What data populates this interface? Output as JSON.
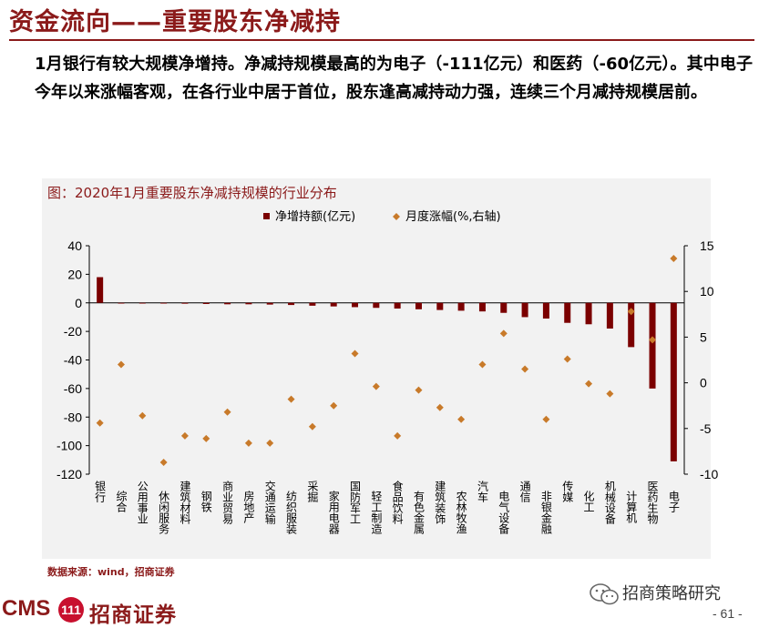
{
  "header": {
    "title": "资金流向——重要股东净减持",
    "summary": "1月银行有较大规模净增持。净减持规模最高的为电子（-111亿元）和医药（-60亿元）。其中电子今年以来涨幅客观，在各行业中居于首位，股东逢高减持动力强，连续三个月减持规模居前。"
  },
  "chart_title": "图：2020年1月重要股东净减持规模的行业分布",
  "source": "数据来源：wind，招商证券",
  "footer": {
    "logo_text": "CMS",
    "logo_badge": "111",
    "logo_cn": "招商证券",
    "wechat_name": "招商策略研究",
    "page_number": "- 61 -"
  },
  "colors": {
    "brand": "#8b1a1a",
    "bar": "#7b0000",
    "marker": "#c87a2a",
    "panel": "#f2f2f2"
  },
  "chart_data": {
    "type": "bar",
    "title": "图：2020年1月重要股东净减持规模的行业分布",
    "categories": [
      "银行",
      "综合",
      "公用事业",
      "休闲服务",
      "建筑材料",
      "钢铁",
      "商业贸易",
      "房地产",
      "交通运输",
      "纺织服装",
      "采掘",
      "家用电器",
      "国防军工",
      "轻工制造",
      "食品饮料",
      "有色金属",
      "建筑装饰",
      "农林牧渔",
      "汽车",
      "电气设备",
      "通信",
      "非银金融",
      "传媒",
      "化工",
      "机械设备",
      "计算机",
      "医药生物",
      "电子"
    ],
    "series": [
      {
        "name": "净增持额(亿元)",
        "type": "bar",
        "axis": "left",
        "values": [
          18,
          -0.3,
          -0.4,
          -0.5,
          -0.6,
          -0.8,
          -1,
          -1,
          -1.2,
          -1.5,
          -2,
          -2.5,
          -3,
          -3.5,
          -4,
          -4.5,
          -5,
          -5.5,
          -6,
          -7,
          -10,
          -11,
          -14,
          -15,
          -18,
          -31,
          -60,
          -111
        ]
      },
      {
        "name": "月度涨幅(%,右轴)",
        "type": "scatter",
        "axis": "right",
        "values": [
          -4.4,
          2,
          -3.6,
          -8.7,
          -5.8,
          -6.1,
          -3.2,
          -6.6,
          -6.6,
          -1.8,
          -4.8,
          -2.5,
          3.2,
          -0.4,
          -5.8,
          -0.8,
          -2.7,
          -4,
          2,
          5.4,
          1.5,
          -4,
          2.6,
          -0.1,
          -1.2,
          7.8,
          4.7,
          13.6
        ]
      }
    ],
    "ylim_left": [
      -120,
      40
    ],
    "yticks_left": [
      40,
      20,
      0,
      -20,
      -40,
      -60,
      -80,
      -100,
      -120
    ],
    "ylim_right": [
      -10,
      15
    ],
    "yticks_right": [
      15,
      10,
      5,
      0,
      -5,
      -10
    ],
    "legend_position": "top-right",
    "grid": false
  }
}
